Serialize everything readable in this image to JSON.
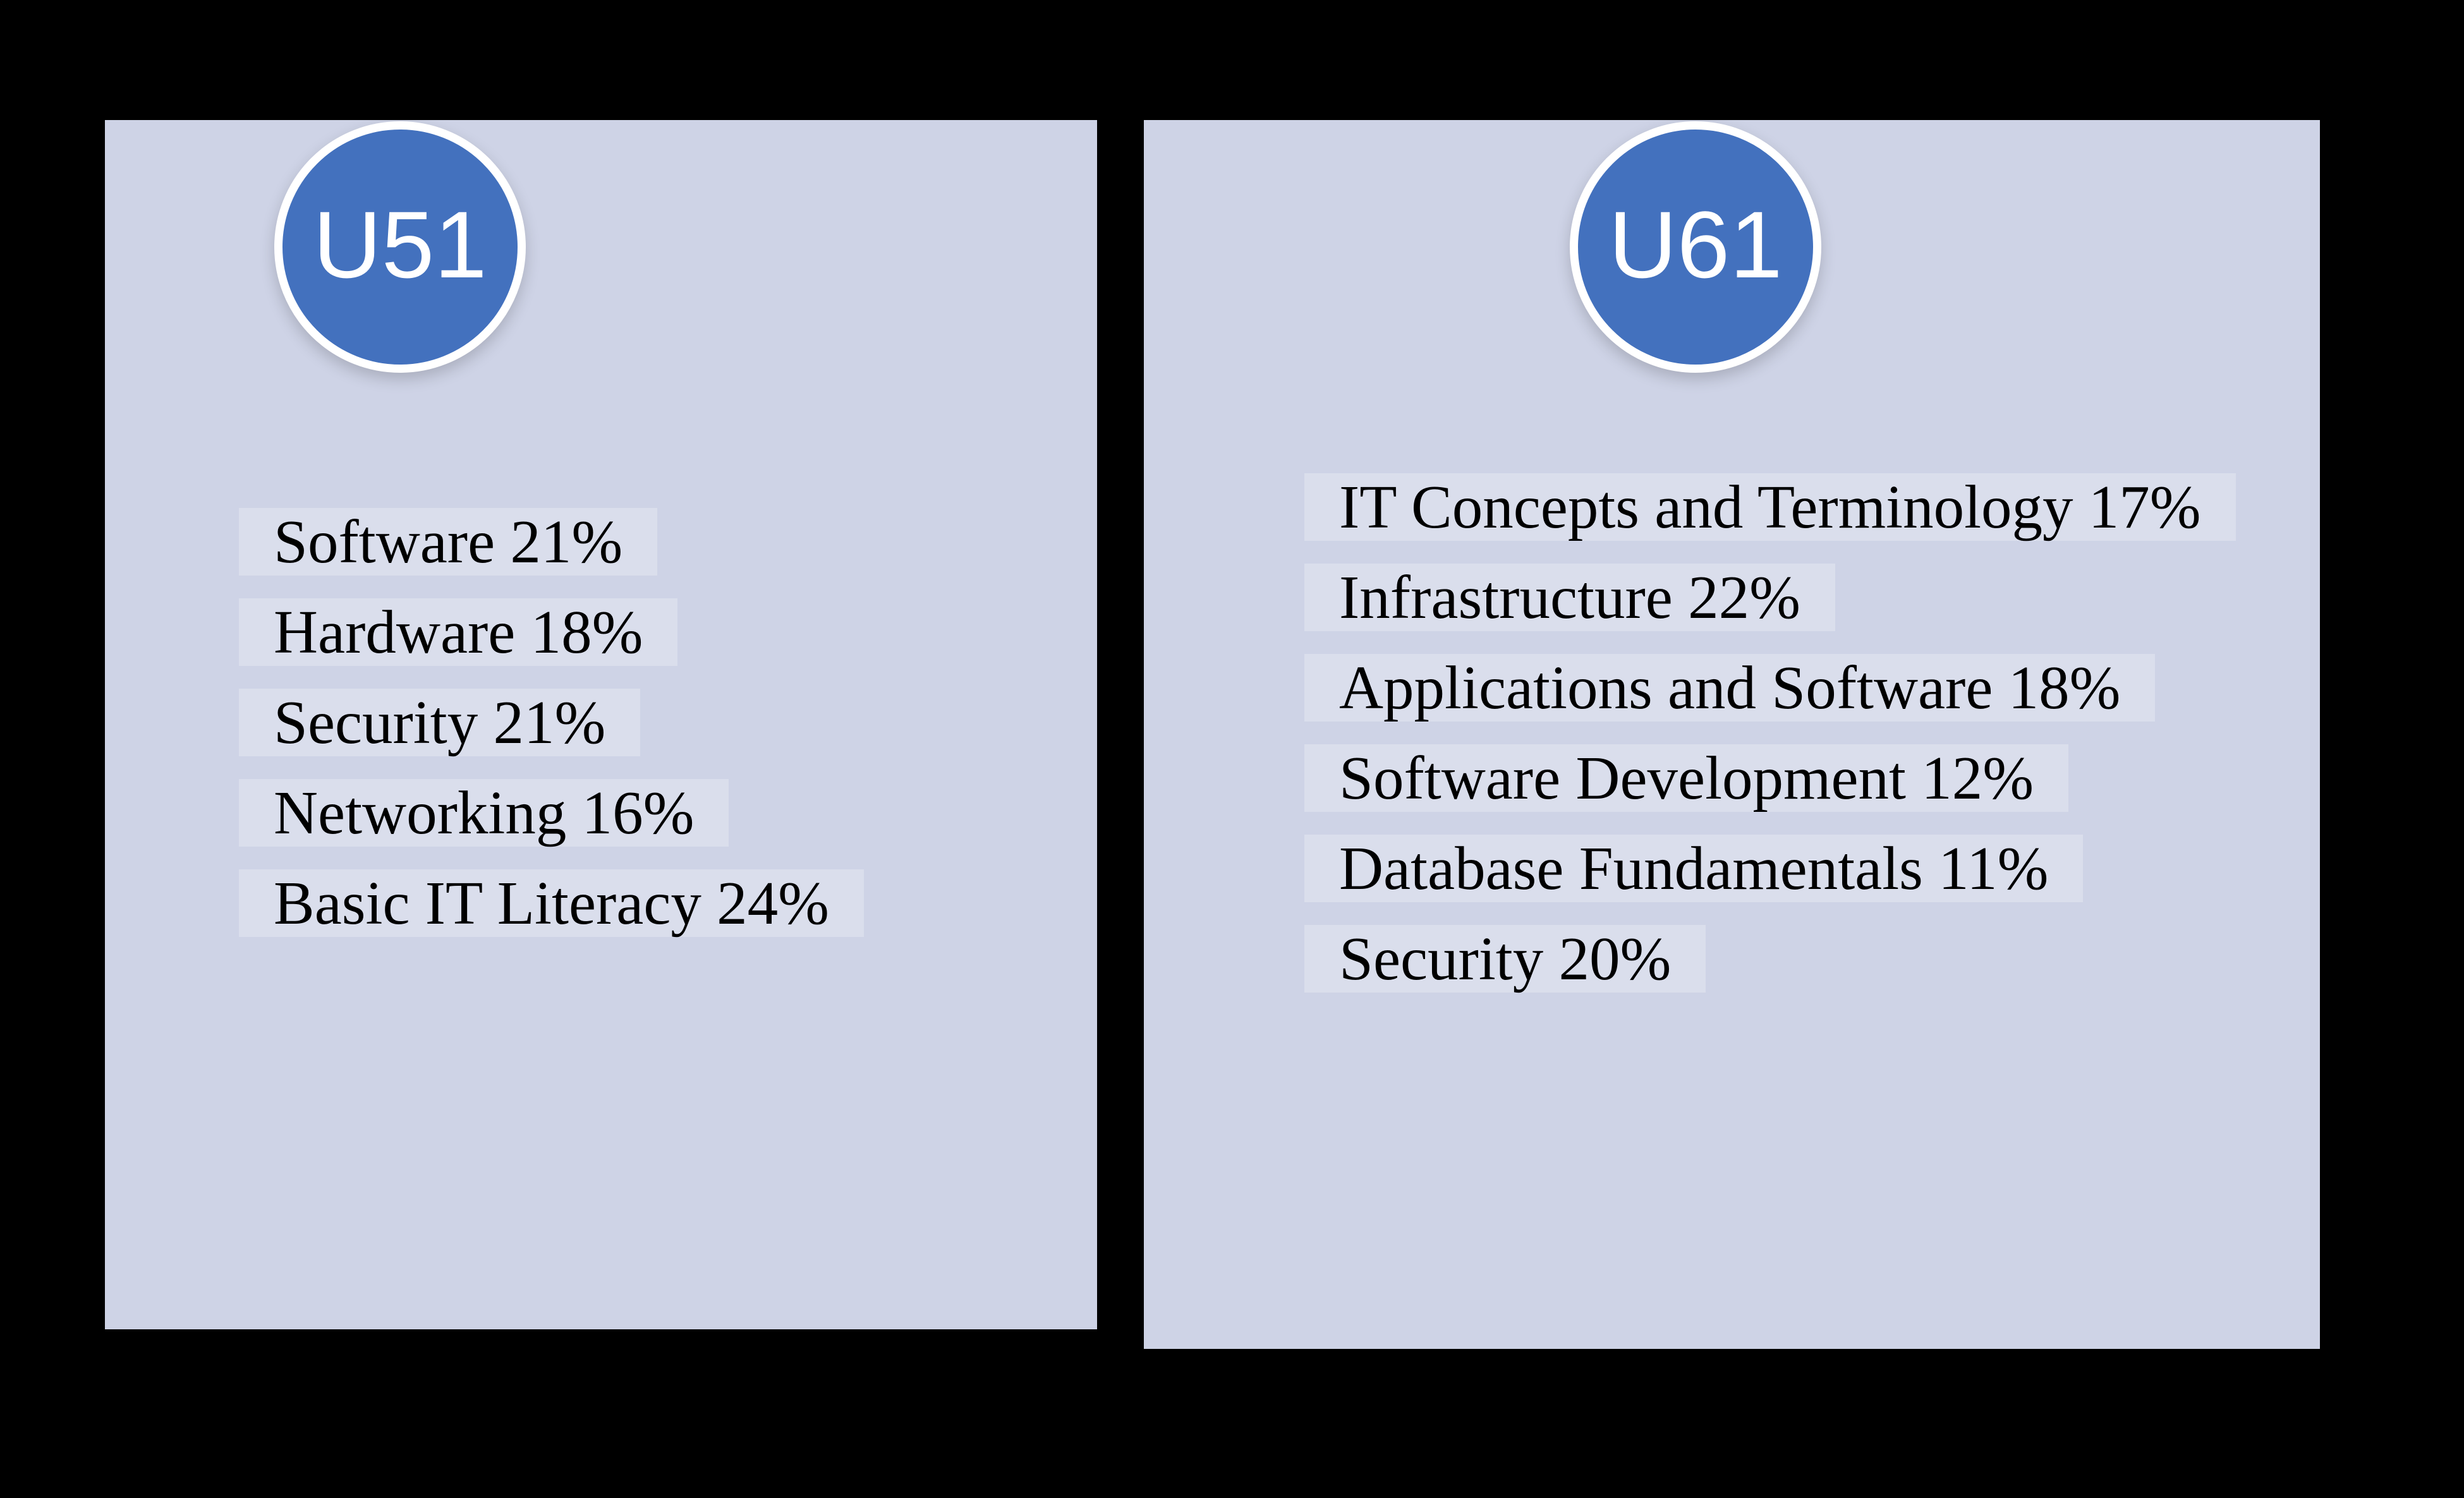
{
  "colors": {
    "background": "#000000",
    "panel_fill": "#CED3E6",
    "badge_fill": "#4371BE",
    "badge_ring": "#FFFFFF",
    "badge_text": "#FFFFFF",
    "list_text": "#000000",
    "line_highlight": "rgba(255,255,255,0.25)"
  },
  "panels": [
    {
      "badge": "U51",
      "items": [
        {
          "label": "Software",
          "percent": "21%",
          "text": "Software 21%"
        },
        {
          "label": "Hardware",
          "percent": "18%",
          "text": "Hardware 18%"
        },
        {
          "label": "Security",
          "percent": "21%",
          "text": "Security 21%"
        },
        {
          "label": "Networking",
          "percent": "16%",
          "text": "Networking 16%"
        },
        {
          "label": "Basic IT Literacy",
          "percent": "24%",
          "text": "Basic IT Literacy 24%"
        }
      ]
    },
    {
      "badge": "U61",
      "items": [
        {
          "label": "IT Concepts and Terminology",
          "percent": "17%",
          "text": "IT Concepts and Terminology 17%"
        },
        {
          "label": "Infrastructure",
          "percent": "22%",
          "text": "Infrastructure 22%"
        },
        {
          "label": "Applications and Software",
          "percent": "18%",
          "text": "Applications and Software 18%"
        },
        {
          "label": "Software Development",
          "percent": "12%",
          "text": "Software Development 12%"
        },
        {
          "label": "Database Fundamentals",
          "percent": "11%",
          "text": "Database Fundamentals 11%"
        },
        {
          "label": "Security",
          "percent": "20%",
          "text": "Security 20%"
        }
      ]
    }
  ]
}
